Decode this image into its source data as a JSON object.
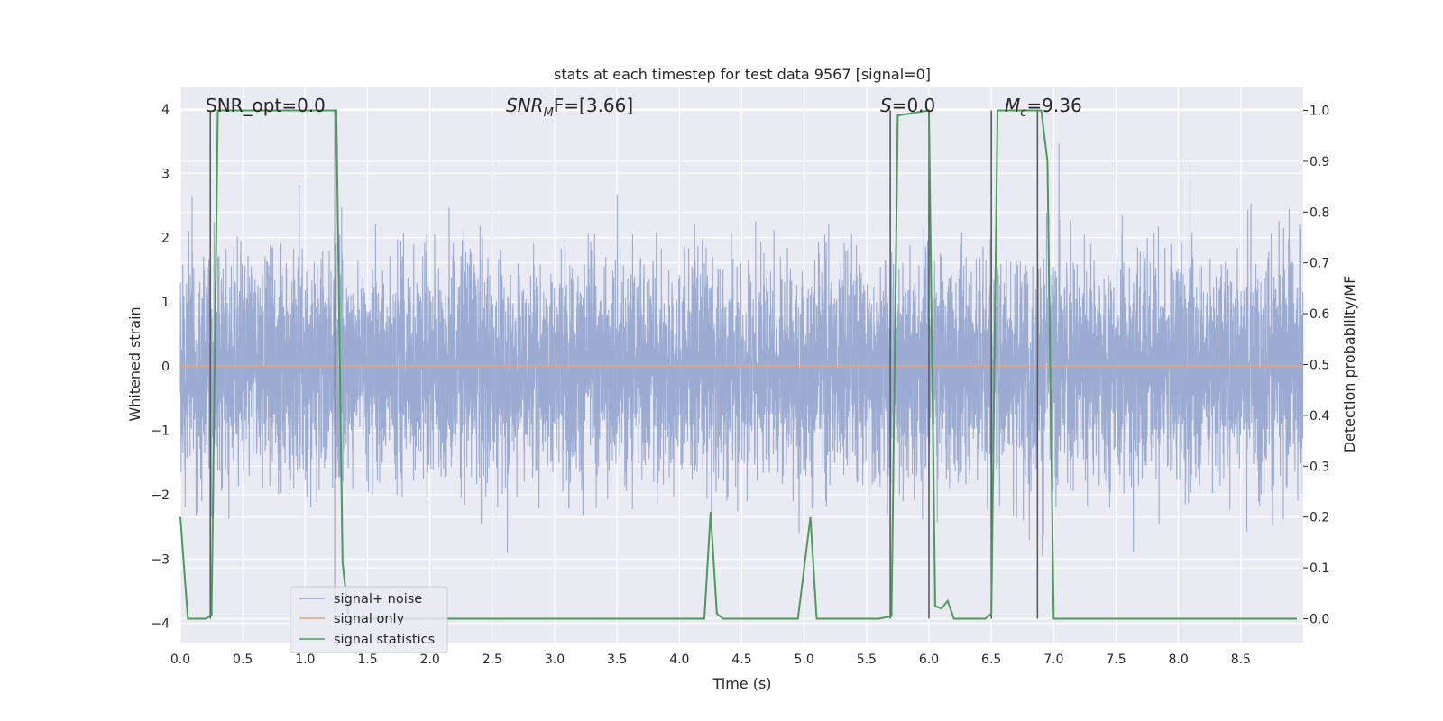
{
  "chart_data": {
    "type": "line",
    "title": "stats at each timestep for test data 9567 [signal=0]",
    "xlabel": "Time (s)",
    "ylabel_left": "Whitened strain",
    "ylabel_right": "Detection probability/MF",
    "xlim": [
      0,
      9.0
    ],
    "ylim_left": [
      -4.3,
      4.35
    ],
    "ylim_right": [
      -0.047,
      1.047
    ],
    "grid": true,
    "x_ticks": [
      "0.0",
      "0.5",
      "1.0",
      "1.5",
      "2.0",
      "2.5",
      "3.0",
      "3.5",
      "4.0",
      "4.5",
      "5.0",
      "5.5",
      "6.0",
      "6.5",
      "7.0",
      "7.5",
      "8.0",
      "8.5"
    ],
    "y_left_ticks": [
      "4",
      "3",
      "2",
      "1",
      "0",
      "−1",
      "−2",
      "−3",
      "−4"
    ],
    "y_right_ticks": [
      "1.0",
      "0.9",
      "0.8",
      "0.7",
      "0.6",
      "0.5",
      "0.4",
      "0.3",
      "0.2",
      "0.1",
      "0.0"
    ],
    "annotations": {
      "snr_opt": "SNR_opt=0.0",
      "snr_mf_sym": "SNR",
      "snr_mf_sub": "M",
      "snr_mf_rest": "F=[3.66]",
      "s_sym": "S",
      "s_rest": "=0.0",
      "mc_sym": "M",
      "mc_sub": "c",
      "mc_rest": "=9.36"
    },
    "legend": {
      "position": "lower left",
      "entries": [
        {
          "label": "signal+ noise",
          "color": "#8da0cb"
        },
        {
          "label": "signal only",
          "color": "#e8a07d"
        },
        {
          "label": "signal statistics",
          "color": "#4c9a5c"
        }
      ]
    },
    "series": [
      {
        "name": "signal+ noise",
        "color": "#8da0cb",
        "description_samples": "whitened strain noise, approx amplitude within [-4, 4]",
        "noise_seed": 9567,
        "sample_rate_display": 600,
        "typical_range": [
          -2.3,
          2.4
        ],
        "extreme_range": [
          -3.9,
          3.9
        ]
      },
      {
        "name": "signal only",
        "color": "#e8a07d",
        "x": [
          0.0,
          9.0
        ],
        "y": [
          0.0,
          0.0
        ]
      },
      {
        "name": "signal statistics",
        "color": "#4c9a5c",
        "axis": "right",
        "x": [
          0.0,
          0.06,
          0.12,
          0.2,
          0.25,
          0.3,
          1.25,
          1.3,
          1.35,
          4.2,
          4.25,
          4.3,
          4.35,
          4.95,
          5.05,
          5.1,
          5.6,
          5.7,
          5.75,
          6.0,
          6.05,
          6.1,
          6.15,
          6.2,
          6.25,
          6.3,
          6.45,
          6.5,
          6.55,
          6.9,
          6.95,
          7.0,
          8.95
        ],
        "y": [
          0.2,
          0.0,
          0.0,
          0.0,
          0.007,
          1.0,
          1.0,
          0.11,
          0.0,
          0.0,
          0.21,
          0.01,
          0.0,
          0.0,
          0.2,
          0.0,
          0.0,
          0.005,
          0.99,
          1.0,
          0.025,
          0.02,
          0.035,
          0.0,
          0.0,
          0.0,
          0.0,
          0.01,
          1.0,
          1.0,
          0.9,
          0.0,
          0.0
        ]
      }
    ],
    "vertical_markers_x": [
      0.24,
      1.24,
      5.69,
      6.0,
      6.5,
      6.87
    ]
  }
}
